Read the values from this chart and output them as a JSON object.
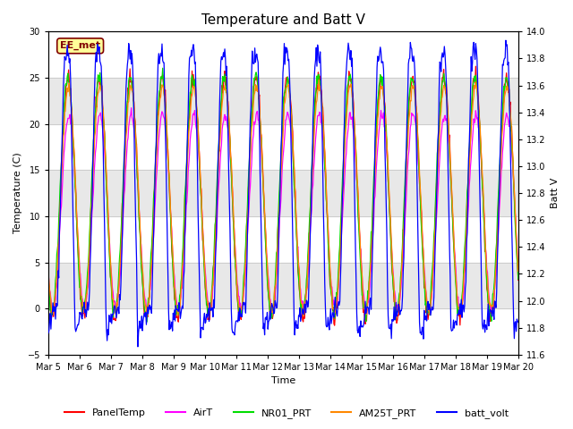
{
  "title": "Temperature and Batt V",
  "xlabel": "Time",
  "ylabel_left": "Temperature (C)",
  "ylabel_right": "Batt V",
  "ylim_left": [
    -5,
    30
  ],
  "ylim_right": [
    11.6,
    14.0
  ],
  "xtick_labels": [
    "Mar 5",
    "Mar 6",
    "Mar 7",
    "Mar 8",
    "Mar 9",
    "Mar 10",
    "Mar 11",
    "Mar 12",
    "Mar 13",
    "Mar 14",
    "Mar 15",
    "Mar 16",
    "Mar 17",
    "Mar 18",
    "Mar 19",
    "Mar 20"
  ],
  "yticks_left": [
    -5,
    0,
    5,
    10,
    15,
    20,
    25,
    30
  ],
  "yticks_right": [
    11.6,
    11.8,
    12.0,
    12.2,
    12.4,
    12.6,
    12.8,
    13.0,
    13.2,
    13.4,
    13.6,
    13.8,
    14.0
  ],
  "series_colors": {
    "PanelTemp": "#FF0000",
    "AirT": "#FF00FF",
    "NR01_PRT": "#00DD00",
    "AM25T_PRT": "#FF8800",
    "batt_volt": "#0000FF"
  },
  "legend_labels": [
    "PanelTemp",
    "AirT",
    "NR01_PRT",
    "AM25T_PRT",
    "batt_volt"
  ],
  "station_label": "EE_met",
  "background_color": "#ffffff",
  "grid_color": "#c8c8c8",
  "shaded_bands": [
    {
      "y_min": 0,
      "y_max": 5,
      "color": "#e8e8e8"
    },
    {
      "y_min": 10,
      "y_max": 15,
      "color": "#e8e8e8"
    },
    {
      "y_min": 20,
      "y_max": 25,
      "color": "#e8e8e8"
    }
  ],
  "title_fontsize": 11,
  "label_fontsize": 8,
  "tick_fontsize": 7,
  "legend_fontsize": 8,
  "linewidth": 0.9
}
